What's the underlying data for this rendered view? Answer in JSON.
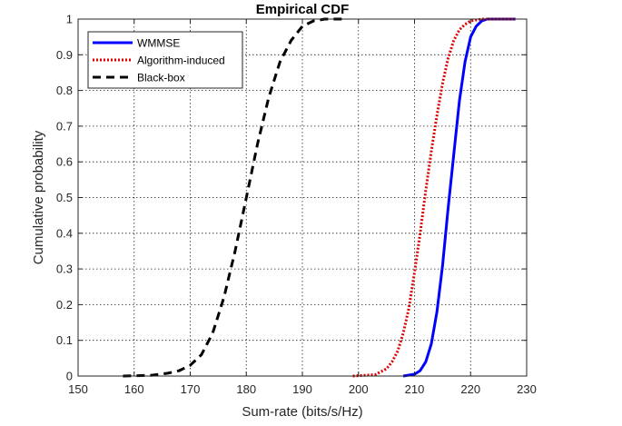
{
  "chart_data": {
    "type": "line",
    "title": "Empirical CDF",
    "xlabel": "Sum-rate (bits/s/Hz)",
    "ylabel": "Cumulative probability",
    "xlim": [
      150,
      230
    ],
    "ylim": [
      0,
      1
    ],
    "xticks": [
      150,
      160,
      170,
      180,
      190,
      200,
      210,
      220,
      230
    ],
    "yticks": [
      0,
      0.1,
      0.2,
      0.3,
      0.4,
      0.5,
      0.6,
      0.7,
      0.8,
      0.9,
      1
    ],
    "xtick_labels": [
      "150",
      "160",
      "170",
      "180",
      "190",
      "200",
      "210",
      "220",
      "230"
    ],
    "ytick_labels": [
      "0",
      "0.1",
      "0.2",
      "0.3",
      "0.4",
      "0.5",
      "0.6",
      "0.7",
      "0.8",
      "0.9",
      "1"
    ],
    "grid": true,
    "legend_position": "top-left",
    "series": [
      {
        "name": "WMMSE",
        "color": "#0000ff",
        "style": "solid",
        "x": [
          208,
          210,
          211,
          212,
          213,
          214,
          215,
          216,
          217,
          218,
          219,
          220,
          221,
          222,
          223,
          224,
          228
        ],
        "y": [
          0,
          0.005,
          0.015,
          0.04,
          0.09,
          0.18,
          0.31,
          0.47,
          0.62,
          0.77,
          0.88,
          0.95,
          0.98,
          0.995,
          1,
          1,
          1
        ]
      },
      {
        "name": "Algorithm-induced",
        "color": "#dd0000",
        "style": "dotted",
        "x": [
          199,
          203,
          205,
          206,
          207,
          208,
          209,
          210,
          211,
          212,
          213,
          214,
          215,
          216,
          217,
          218,
          219,
          220,
          222,
          225,
          228
        ],
        "y": [
          0,
          0.004,
          0.02,
          0.04,
          0.07,
          0.12,
          0.19,
          0.29,
          0.4,
          0.52,
          0.63,
          0.73,
          0.82,
          0.89,
          0.94,
          0.97,
          0.985,
          0.995,
          1,
          1,
          1
        ]
      },
      {
        "name": "Black-box",
        "color": "#000000",
        "style": "dashed",
        "x": [
          158,
          163,
          166,
          168,
          170,
          172,
          174,
          176,
          178,
          180,
          182,
          184,
          186,
          188,
          190,
          192,
          194,
          198
        ],
        "y": [
          0,
          0.002,
          0.008,
          0.015,
          0.03,
          0.06,
          0.12,
          0.22,
          0.35,
          0.5,
          0.65,
          0.78,
          0.88,
          0.94,
          0.98,
          0.995,
          1,
          1
        ]
      }
    ]
  }
}
